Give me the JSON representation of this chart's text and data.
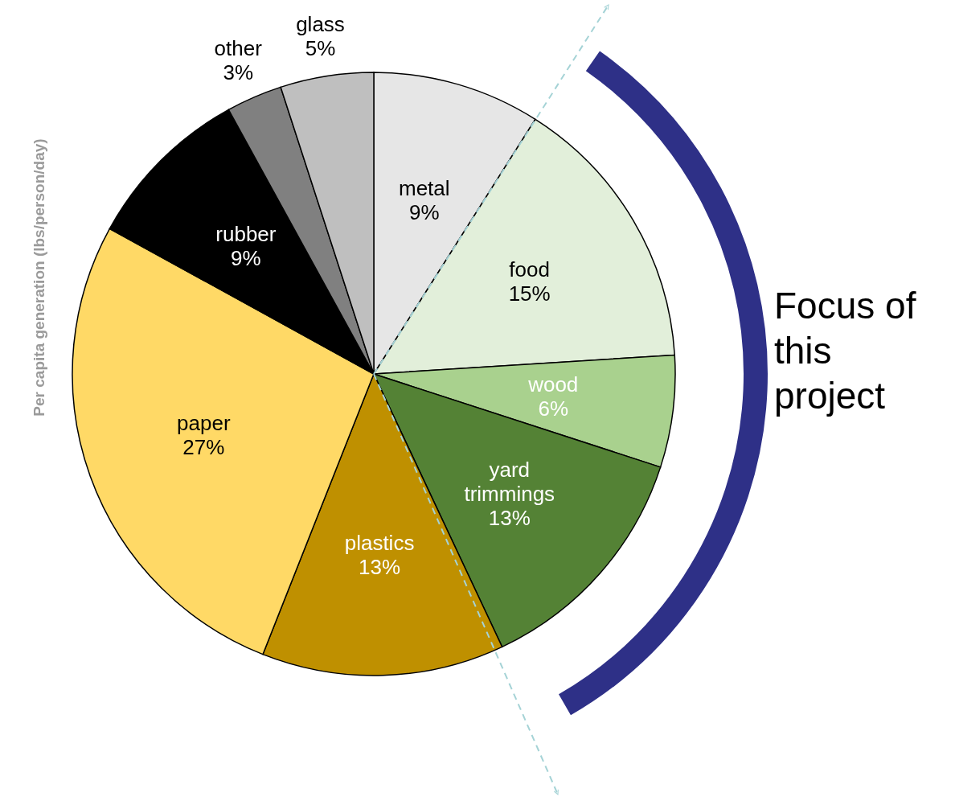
{
  "chart_data": {
    "type": "pie",
    "ylabel": "Per capita generation (lbs/person/day)",
    "categories": [
      "metal",
      "food",
      "wood",
      "yard trimmings",
      "plastics",
      "paper",
      "rubber",
      "other",
      "glass"
    ],
    "values": [
      9,
      15,
      6,
      13,
      13,
      27,
      9,
      3,
      5
    ],
    "value_labels": [
      "9%",
      "15%",
      "6%",
      "13%",
      "13%",
      "27%",
      "9%",
      "3%",
      "5%"
    ],
    "colors": [
      "#e6e6e6",
      "#e2efda",
      "#a9d18e",
      "#548235",
      "#bf9000",
      "#ffd966",
      "#000000",
      "#808080",
      "#bfbfbf"
    ],
    "annotations": [
      "Focus of this project"
    ],
    "legend": false
  }
}
